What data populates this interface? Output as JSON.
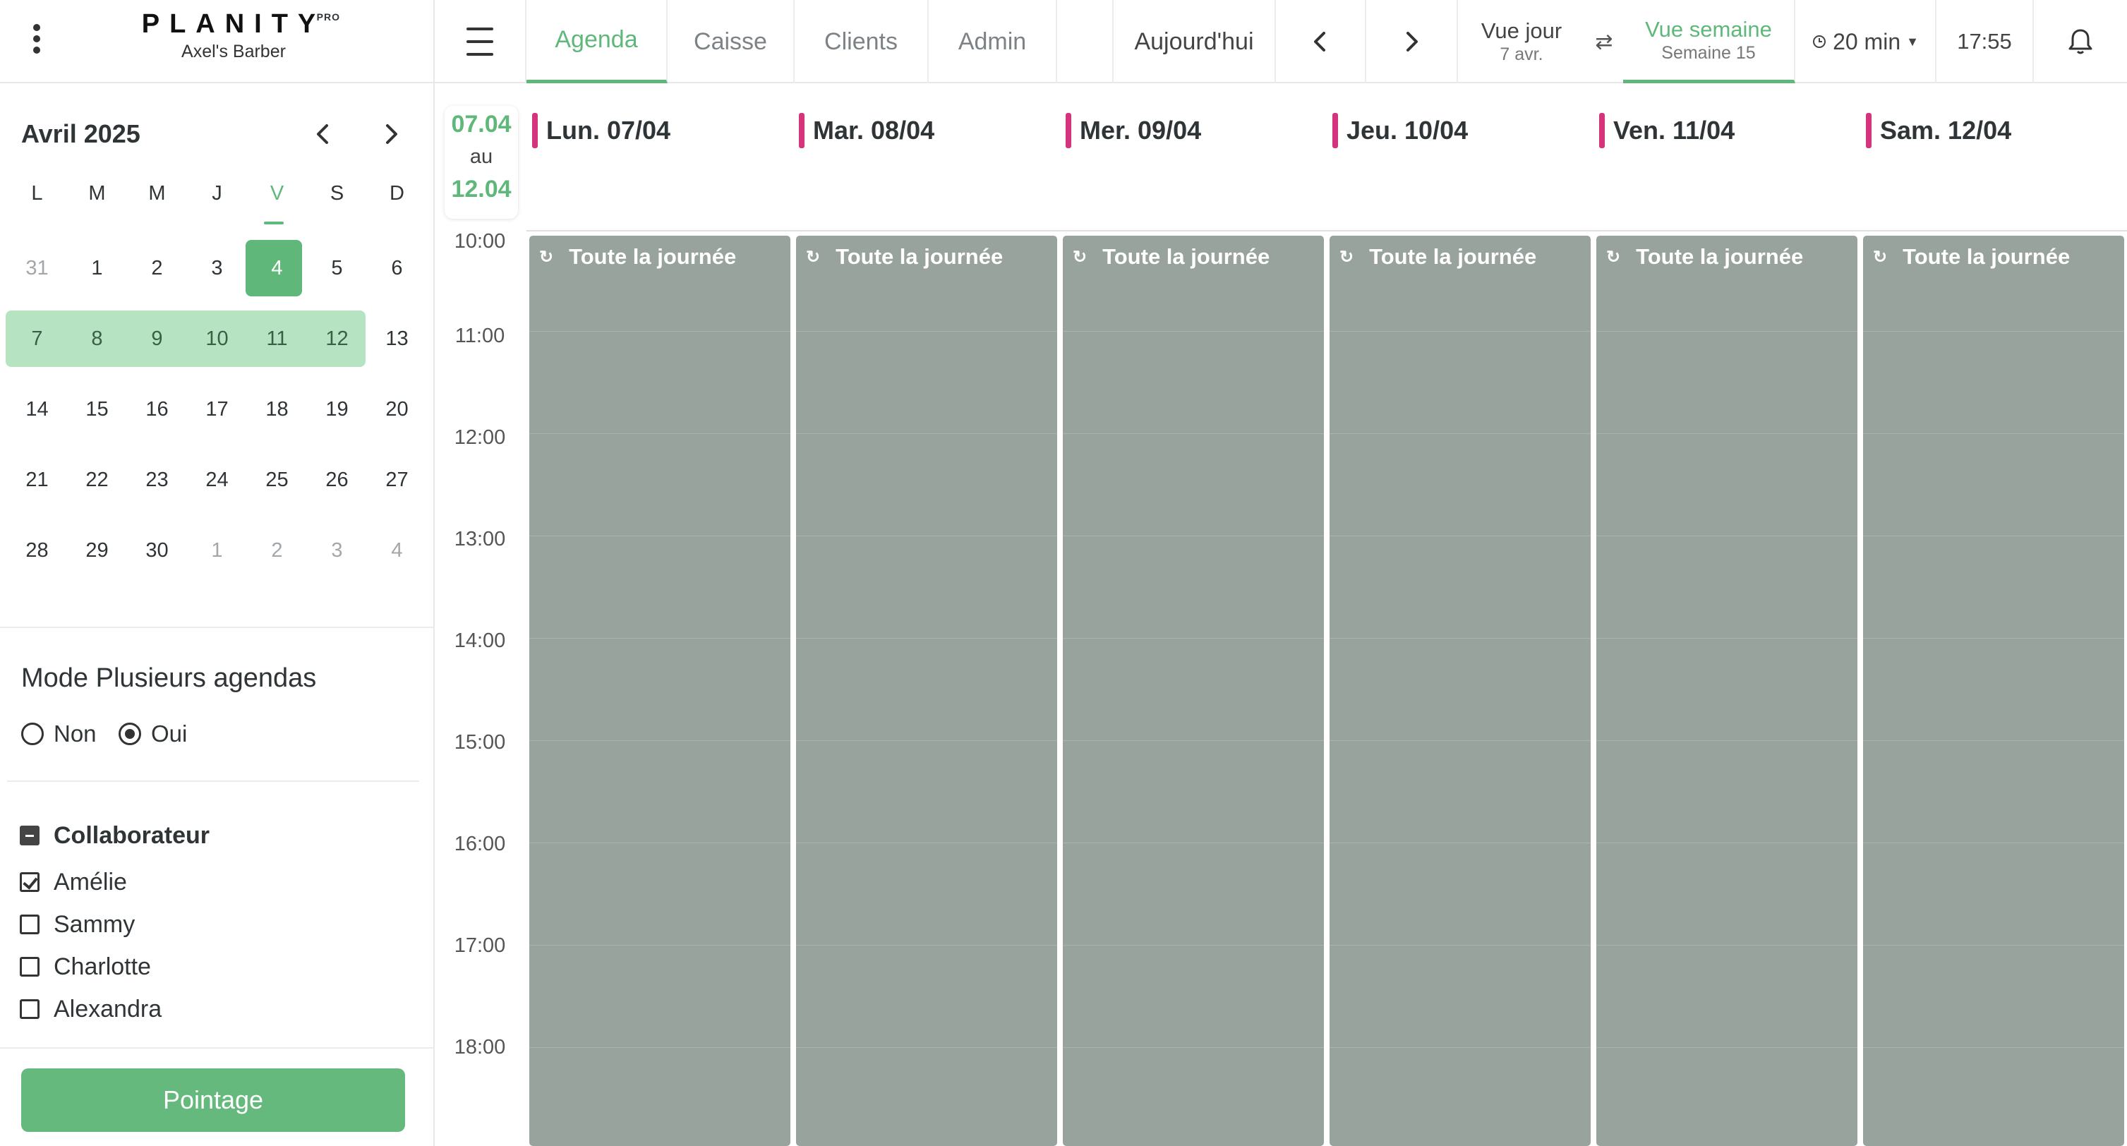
{
  "app": {
    "brand": "PLANITY",
    "pro": "PRO",
    "salon": "Axel's Barber"
  },
  "topnav": {
    "tabs": [
      "Agenda",
      "Caisse",
      "Clients",
      "Admin"
    ],
    "active_tab": "Agenda",
    "today": "Aujourd'hui",
    "view_day": {
      "title": "Vue jour",
      "sub": "7 avr."
    },
    "view_week": {
      "title": "Vue semaine",
      "sub": "Semaine 15"
    },
    "slot": "20 min",
    "time": "17:55"
  },
  "minical": {
    "month": "Avril 2025",
    "weekdays": [
      "L",
      "M",
      "M",
      "J",
      "V",
      "S",
      "D"
    ],
    "rows": [
      [
        "31",
        "1",
        "2",
        "3",
        "4",
        "5",
        "6"
      ],
      [
        "7",
        "8",
        "9",
        "10",
        "11",
        "12",
        "13"
      ],
      [
        "14",
        "15",
        "16",
        "17",
        "18",
        "19",
        "20"
      ],
      [
        "21",
        "22",
        "23",
        "24",
        "25",
        "26",
        "27"
      ],
      [
        "28",
        "29",
        "30",
        "1",
        "2",
        "3",
        "4"
      ]
    ]
  },
  "mode": {
    "title": "Mode Plusieurs agendas",
    "no": "Non",
    "yes": "Oui",
    "selected": "Oui"
  },
  "collaborators": {
    "title": "Collaborateur",
    "items": [
      {
        "name": "Amélie",
        "checked": true
      },
      {
        "name": "Sammy",
        "checked": false
      },
      {
        "name": "Charlotte",
        "checked": false
      },
      {
        "name": "Alexandra",
        "checked": false
      }
    ]
  },
  "pointage": "Pointage",
  "calendar": {
    "range": {
      "from": "07.04",
      "au": "au",
      "to": "12.04"
    },
    "days": [
      "Lun. 07/04",
      "Mar. 08/04",
      "Mer. 09/04",
      "Jeu. 10/04",
      "Ven. 11/04",
      "Sam. 12/04"
    ],
    "hours": [
      "10:00",
      "11:00",
      "12:00",
      "13:00",
      "14:00",
      "15:00",
      "16:00",
      "17:00",
      "18:00"
    ],
    "event_label": "Toute la journée",
    "event_color": "#99a39e",
    "accent": "#5fb87a",
    "day_marker": "#d6337d"
  }
}
